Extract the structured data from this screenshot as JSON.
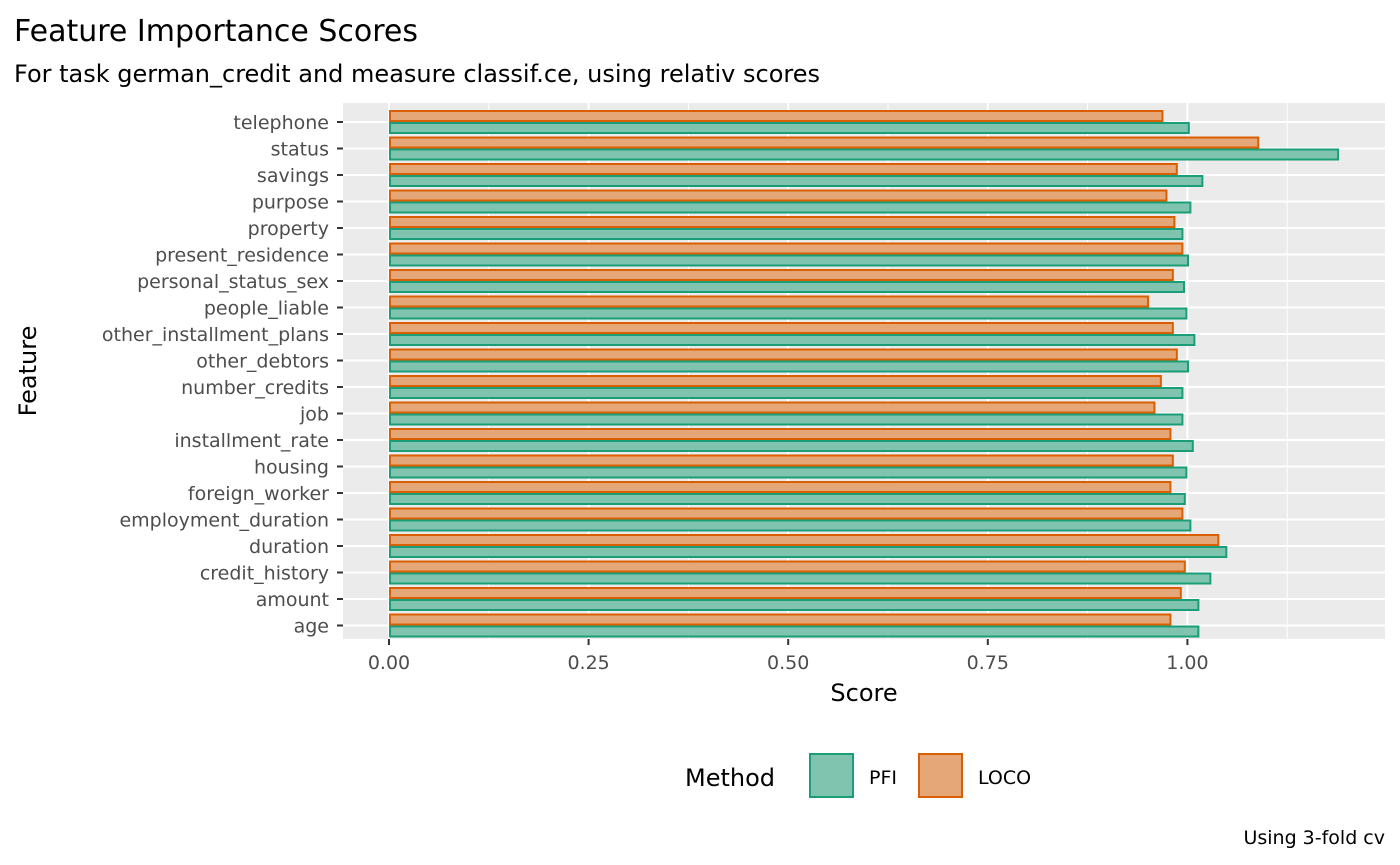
{
  "chart_data": {
    "type": "bar",
    "orientation": "horizontal",
    "title": "Feature Importance Scores",
    "subtitle": "For task german_credit and measure classif.ce, using relativ scores",
    "xlabel": "Score",
    "ylabel": "Feature",
    "caption": "Using 3-fold cv",
    "xlim": [
      -0.06,
      1.25
    ],
    "x_ticks": [
      "0.00",
      "0.25",
      "0.50",
      "0.75",
      "1.00"
    ],
    "x_tick_values": [
      0,
      0.25,
      0.5,
      0.75,
      1.0
    ],
    "grid": true,
    "legend": {
      "title": "Method",
      "position": "bottom"
    },
    "categories": [
      "age",
      "amount",
      "credit_history",
      "duration",
      "employment_duration",
      "foreign_worker",
      "housing",
      "installment_rate",
      "job",
      "number_credits",
      "other_debtors",
      "other_installment_plans",
      "people_liable",
      "personal_status_sex",
      "present_residence",
      "property",
      "purpose",
      "savings",
      "status",
      "telephone"
    ],
    "series": [
      {
        "name": "PFI",
        "fill": "#80c4b0",
        "stroke": "#1b9e77",
        "values": [
          1.015,
          1.015,
          1.03,
          1.05,
          1.005,
          0.998,
          1.0,
          1.008,
          0.995,
          0.995,
          1.002,
          1.01,
          1.0,
          0.997,
          1.002,
          0.995,
          1.005,
          1.02,
          1.19,
          1.003
        ]
      },
      {
        "name": "LOCO",
        "fill": "#e6a778",
        "stroke": "#d95f02",
        "values": [
          0.98,
          0.993,
          0.998,
          1.04,
          0.995,
          0.98,
          0.983,
          0.98,
          0.96,
          0.968,
          0.988,
          0.983,
          0.952,
          0.983,
          0.995,
          0.985,
          0.975,
          0.988,
          1.09,
          0.97
        ]
      }
    ]
  }
}
